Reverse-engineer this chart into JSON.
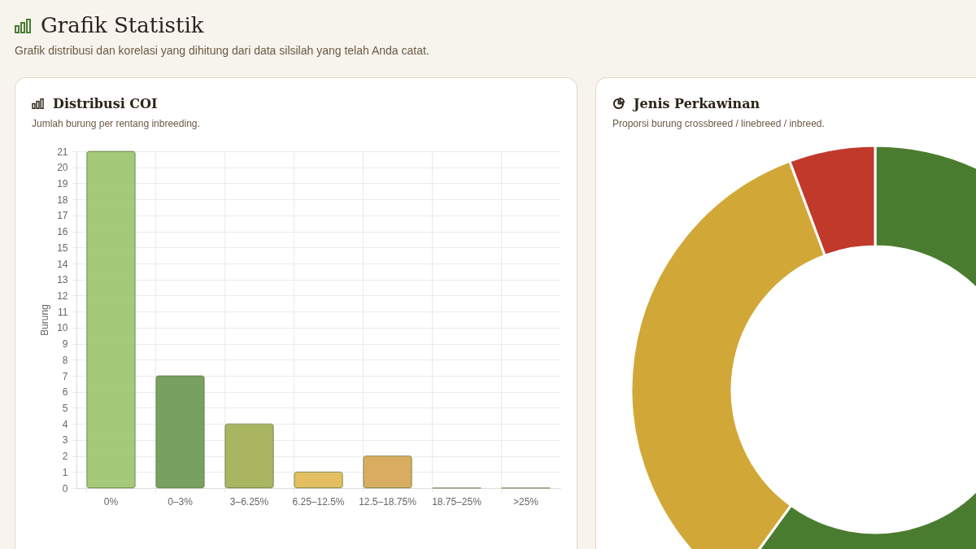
{
  "chart_data": [
    {
      "type": "bar",
      "title": "Distribusi COI",
      "subtitle": "Jumlah burung per rentang inbreeding.",
      "annotations": [
        "Grafik Statistik",
        "Grafik distribusi dan korelasi yang dihitung dari data silsilah yang telah Anda catat."
      ],
      "categories": [
        "0%",
        "0–3%",
        "3–6.25%",
        "6.25–12.5%",
        "12.5–18.75%",
        "18.75–25%",
        ">25%"
      ],
      "values": [
        21,
        7,
        4,
        1,
        2,
        0,
        0
      ],
      "colors": [
        "#9bc46b",
        "#6a9650",
        "#a0ad50",
        "#e0b850",
        "#d4a550",
        null,
        null
      ],
      "ylabel": "Burung",
      "ylim": [
        0,
        21
      ],
      "yticks": [
        0,
        1,
        2,
        3,
        4,
        5,
        6,
        7,
        8,
        9,
        10,
        11,
        12,
        13,
        14,
        15,
        16,
        17,
        18,
        19,
        20,
        21
      ],
      "grid": true
    },
    {
      "type": "donut",
      "title": "Jenis Perkawinan",
      "subtitle": "Proporsi burung crossbreed / linebreed / inbreed.",
      "categories": [
        null,
        null,
        null
      ],
      "values": [
        60,
        34.3,
        5.7
      ],
      "colors": [
        "#4a7c2f",
        "#d1a838",
        "#c0392b"
      ]
    }
  ]
}
